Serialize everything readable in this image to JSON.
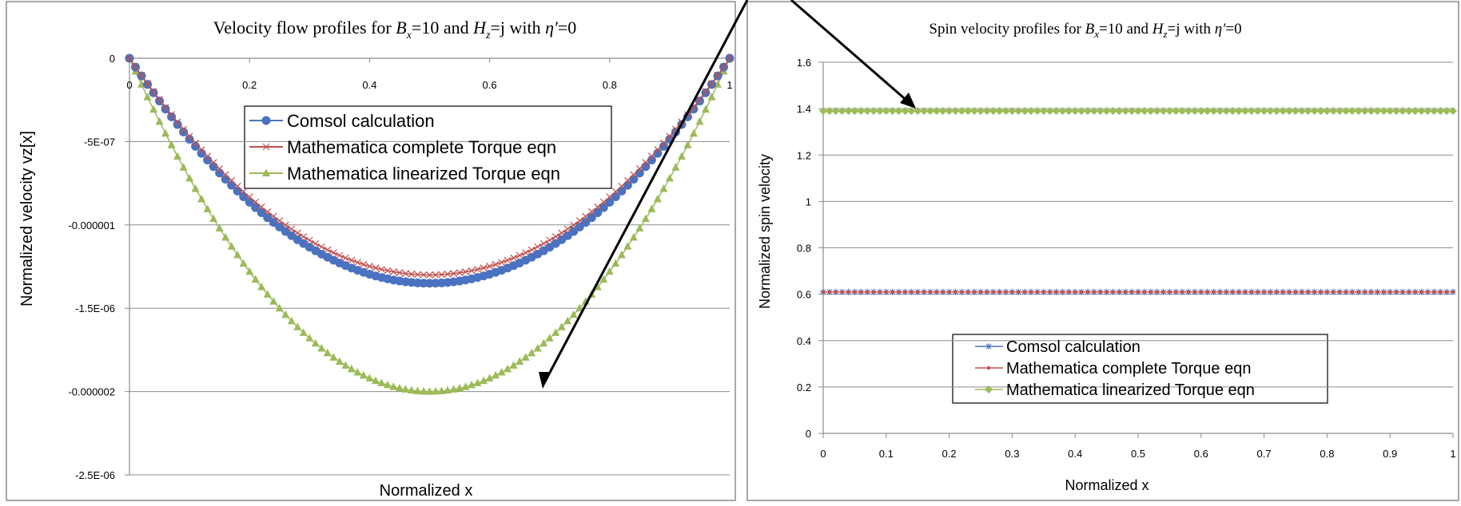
{
  "chart_data": [
    {
      "type": "scatter",
      "title_parts": [
        "Velocity flow profiles for ",
        "B",
        "x",
        "=10 and ",
        "H",
        "z",
        "=j with ",
        "η′",
        "=0"
      ],
      "xlabel": "Normalized x",
      "ylabel": "Normalized velocity vz[x]",
      "xlim": [
        0,
        1
      ],
      "ylim": [
        -2.5e-06,
        0
      ],
      "x_ticks": [
        "0",
        "0.2",
        "0.4",
        "0.6",
        "0.8",
        "1"
      ],
      "y_ticks": [
        "0",
        "-5E-07",
        "-0.000001",
        "-1.5E-06",
        "-0.000002",
        "-2.5E-06"
      ],
      "grid": true,
      "legend_position": "upper-center",
      "x_values": "0 to 1 in steps of 0.01",
      "series": [
        {
          "name": "Comsol calculation",
          "color": "#4a72c0",
          "marker": "circle",
          "formula": "vz = -5.4e-6 * x * (1 - x)",
          "min_value": -1.35e-06
        },
        {
          "name": "Mathematica complete Torque eqn",
          "color": "#c0504d",
          "marker": "x",
          "formula": "vz = -5.2e-6 * x * (1 - x)",
          "min_value": -1.3e-06
        },
        {
          "name": "Mathematica linearized Torque eqn",
          "color": "#9bbb59",
          "marker": "triangle",
          "formula": "vz = -8.0e-6 * x * (1 - x)",
          "min_value": -2e-06
        }
      ]
    },
    {
      "type": "scatter",
      "title_parts": [
        "Spin velocity profiles for ",
        "B",
        "x",
        "=10 and ",
        "H",
        "z",
        "=j with ",
        "η′",
        "=0"
      ],
      "xlabel": "Normalized x",
      "ylabel": "Normalized spin velocity",
      "xlim": [
        0,
        1
      ],
      "ylim": [
        0,
        1.6
      ],
      "x_ticks": [
        "0",
        "0.1",
        "0.2",
        "0.3",
        "0.4",
        "0.5",
        "0.6",
        "0.7",
        "0.8",
        "0.9",
        "1"
      ],
      "y_ticks": [
        "0",
        "0.2",
        "0.4",
        "0.6",
        "0.8",
        "1",
        "1.2",
        "1.4",
        "1.6"
      ],
      "grid": true,
      "legend_position": "lower-center",
      "x_values": "0 to 1 in steps of 0.01",
      "series": [
        {
          "name": "Comsol calculation",
          "color": "#4a72c0",
          "marker": "star",
          "value": 0.61
        },
        {
          "name": "Mathematica complete Torque eqn",
          "color": "#c0504d",
          "marker": "dot",
          "value": 0.61
        },
        {
          "name": "Mathematica linearized Torque eqn",
          "color": "#9bbb59",
          "marker": "diamond",
          "value": 1.39
        }
      ]
    }
  ]
}
